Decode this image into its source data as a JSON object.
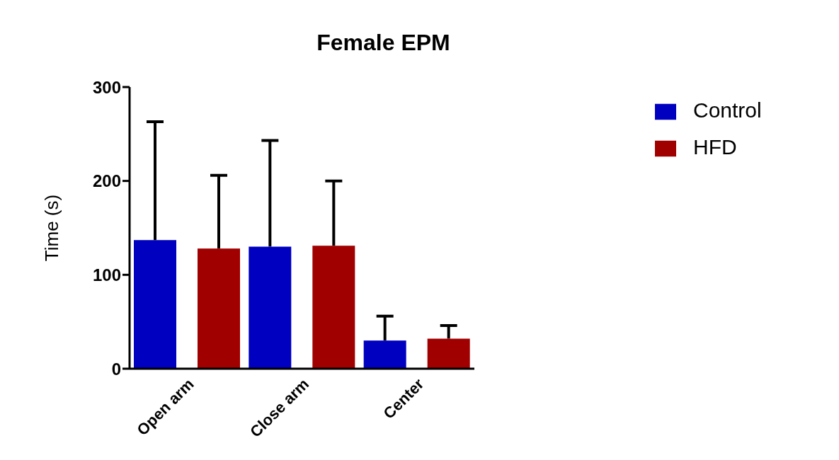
{
  "chart_data": {
    "type": "bar",
    "title": "Female EPM",
    "ylabel": "Time (s)",
    "categories": [
      "Open arm",
      "Close arm",
      "Center"
    ],
    "series": [
      {
        "name": "Control",
        "color": "#0000c0",
        "values": [
          137,
          130,
          30
        ],
        "errors": [
          [
            137,
            263
          ],
          [
            130,
            243
          ],
          [
            30,
            56
          ]
        ]
      },
      {
        "name": "HFD",
        "color": "#a00000",
        "values": [
          128,
          131,
          32
        ],
        "errors": [
          [
            128,
            206
          ],
          [
            131,
            200
          ],
          [
            32,
            46
          ]
        ]
      }
    ],
    "ylim": [
      0,
      300
    ],
    "yticks": [
      0,
      100,
      200,
      300
    ],
    "legend": "top right"
  }
}
